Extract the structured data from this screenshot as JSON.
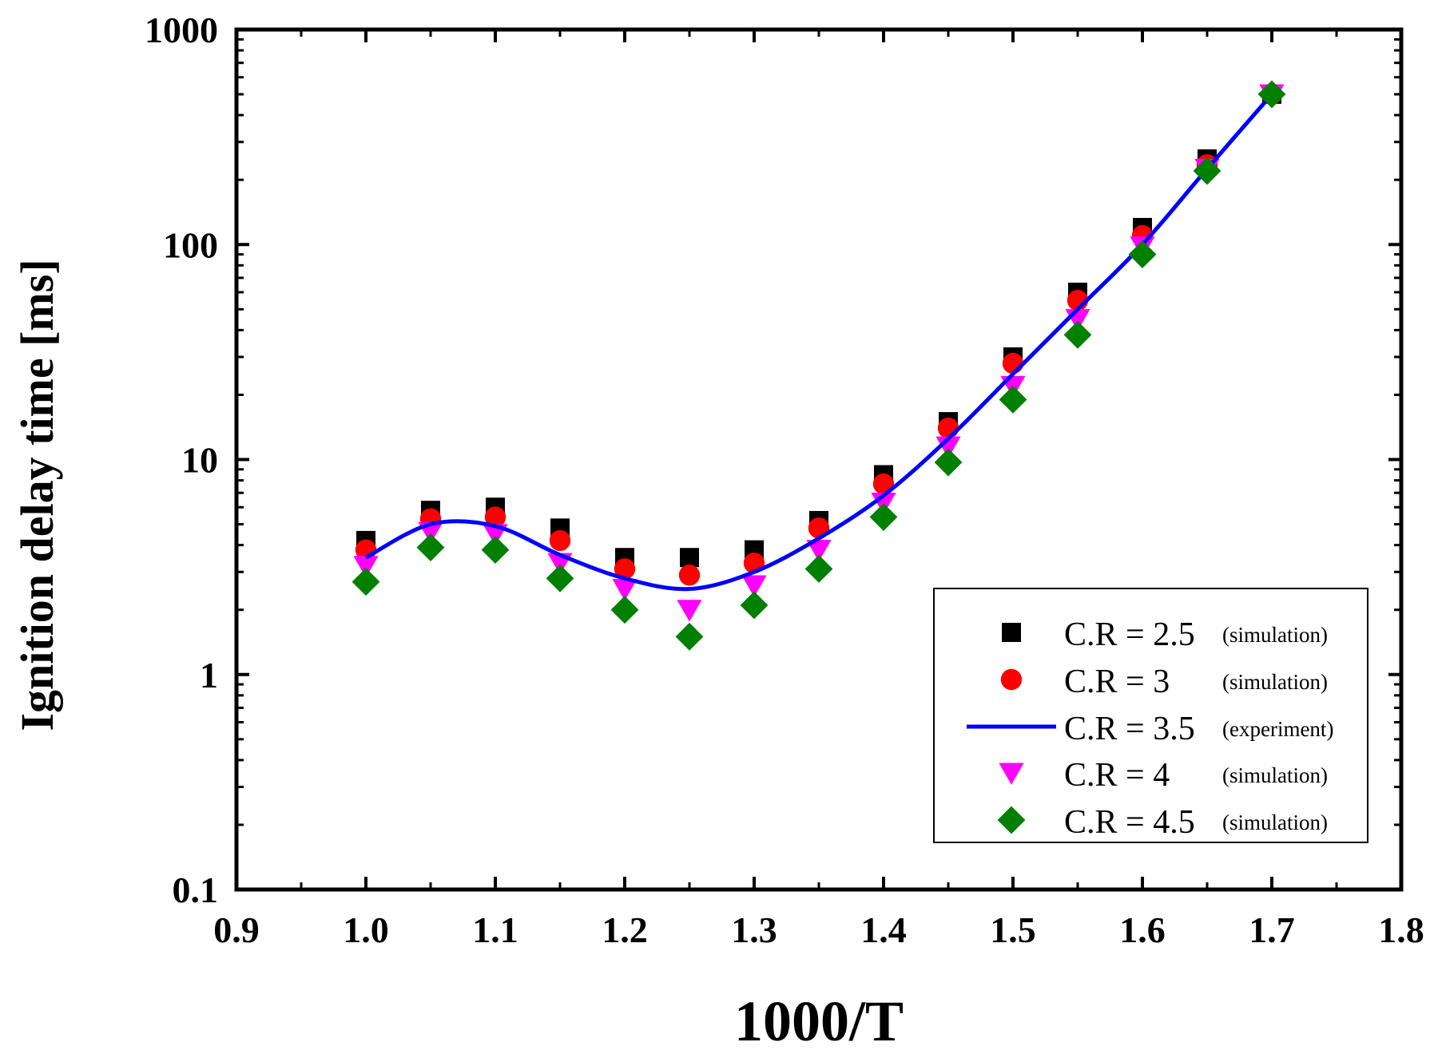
{
  "chart_data": {
    "type": "scatter",
    "title": "",
    "xlabel": "1000/T",
    "ylabel": "Ignition delay time [ms]",
    "xlim": [
      0.9,
      1.8
    ],
    "ylim": [
      0.1,
      1000
    ],
    "yscale": "log",
    "x_ticks": [
      0.9,
      1.0,
      1.1,
      1.2,
      1.3,
      1.4,
      1.5,
      1.6,
      1.7,
      1.8
    ],
    "x_tick_labels": [
      "0.9",
      "1.0",
      "1.1",
      "1.2",
      "1.3",
      "1.4",
      "1.5",
      "1.6",
      "1.7",
      "1.8"
    ],
    "y_ticks": [
      0.1,
      1,
      10,
      100,
      1000
    ],
    "y_tick_labels": [
      "0.1",
      "1",
      "10",
      "100",
      "1000"
    ],
    "legend_position": "bottom-right",
    "x": [
      1.0,
      1.05,
      1.1,
      1.15,
      1.2,
      1.25,
      1.3,
      1.35,
      1.4,
      1.45,
      1.5,
      1.55,
      1.6,
      1.65,
      1.7
    ],
    "series": [
      {
        "name": "C.R = 2.5",
        "note": "(simulation)",
        "marker": "square",
        "color": "#000000",
        "values": [
          4.2,
          5.8,
          6.0,
          4.8,
          3.5,
          3.5,
          3.8,
          5.2,
          8.5,
          15,
          30,
          60,
          120,
          250,
          500
        ]
      },
      {
        "name": "C.R = 3",
        "note": "(simulation)",
        "marker": "circle",
        "color": "#ff0000",
        "values": [
          3.8,
          5.3,
          5.4,
          4.2,
          3.1,
          2.9,
          3.3,
          4.8,
          7.7,
          14,
          28,
          55,
          110,
          235,
          500
        ]
      },
      {
        "name": "C.R = 3.5",
        "note": "(experiment)",
        "marker": "line",
        "color": "#0000ff",
        "values": [
          3.5,
          5.0,
          4.9,
          3.6,
          2.8,
          2.5,
          3.0,
          4.3,
          6.8,
          12.5,
          25,
          50,
          100,
          225,
          500
        ]
      },
      {
        "name": "C.R = 4",
        "note": "(simulation)",
        "marker": "triangle-down",
        "color": "#ff00ff",
        "values": [
          3.2,
          4.6,
          4.5,
          3.3,
          2.5,
          2.0,
          2.6,
          3.8,
          6.3,
          11.5,
          22,
          45,
          98,
          225,
          500
        ]
      },
      {
        "name": "C.R = 4.5",
        "note": "(simulation)",
        "marker": "diamond",
        "color": "#008000",
        "values": [
          2.7,
          3.9,
          3.8,
          2.8,
          2.0,
          1.5,
          2.1,
          3.1,
          5.4,
          9.7,
          19,
          38,
          90,
          220,
          500
        ]
      }
    ]
  }
}
